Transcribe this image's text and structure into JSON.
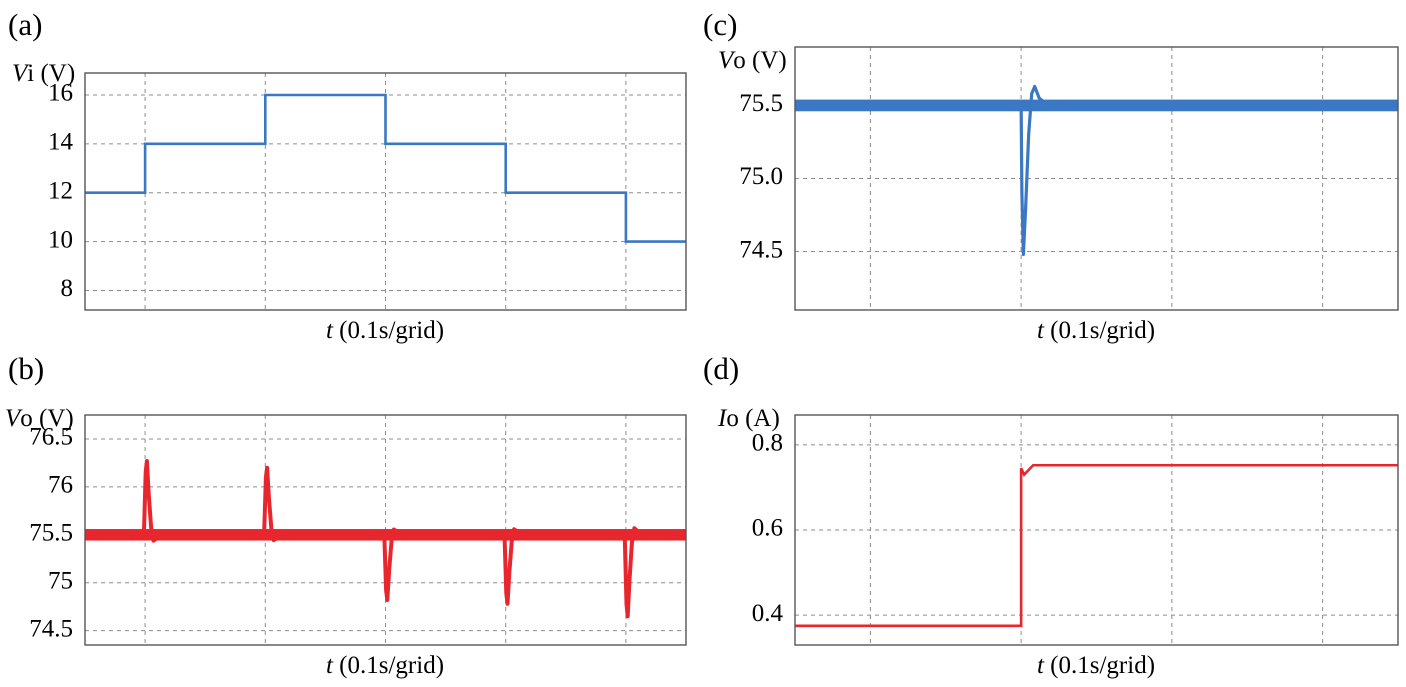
{
  "figure": {
    "colors": {
      "blue": "#3a78c3",
      "red": "#e8262e",
      "grid": "#8c8c8c",
      "frame": "#555555"
    }
  },
  "chart_data": [
    {
      "id": "a",
      "panel_label": "(a)",
      "type": "line",
      "ylabel_var": "V",
      "ylabel_sub": "i",
      "ylabel_unit": " (V)",
      "xlabel_var": "t",
      "xlabel_rest": " (0.1s/grid)",
      "x_grid_step": 0.1,
      "xlim": [
        0,
        0.5
      ],
      "ylim": [
        7.2,
        16.9
      ],
      "yticks": [
        8,
        10,
        12,
        14,
        16
      ],
      "ytick_labels": [
        "8",
        "10",
        "12",
        "14",
        "16"
      ],
      "y_gridlines": [
        8,
        10,
        12,
        14,
        16
      ],
      "x_gridlines": [
        0.05,
        0.15,
        0.25,
        0.35,
        0.45
      ],
      "color": "blue",
      "series": [
        {
          "name": "Vi",
          "x": [
            0,
            0.05,
            0.05,
            0.15,
            0.15,
            0.25,
            0.25,
            0.35,
            0.35,
            0.45,
            0.45,
            0.5
          ],
          "y": [
            12,
            12,
            14,
            14,
            16,
            16,
            14,
            14,
            12,
            12,
            10,
            10
          ]
        }
      ]
    },
    {
      "id": "b",
      "panel_label": "(b)",
      "type": "line",
      "ylabel_var": "V",
      "ylabel_sub": "o",
      "ylabel_unit": " (V)",
      "xlabel_var": "t",
      "xlabel_rest": " (0.1s/grid)",
      "xlim": [
        0,
        0.5
      ],
      "ylim": [
        74.35,
        76.75
      ],
      "yticks": [
        74.5,
        75,
        75.5,
        76,
        76.5
      ],
      "ytick_labels": [
        "74.5",
        "75",
        "75.5",
        "76",
        "76.5"
      ],
      "y_gridlines": [
        74.5,
        75,
        75.5,
        76,
        76.5
      ],
      "x_gridlines": [
        0.05,
        0.15,
        0.25,
        0.35,
        0.45
      ],
      "color": "red",
      "steady_value": 75.5,
      "ripple_band": 0.06,
      "transients": [
        {
          "t": 0.05,
          "peak": 76.27
        },
        {
          "t": 0.15,
          "peak": 76.2
        },
        {
          "t": 0.25,
          "peak": 74.82
        },
        {
          "t": 0.35,
          "peak": 74.78
        },
        {
          "t": 0.45,
          "peak": 74.65
        }
      ]
    },
    {
      "id": "c",
      "panel_label": "(c)",
      "type": "line",
      "ylabel_var": "V",
      "ylabel_sub": "o",
      "ylabel_unit": " (V)",
      "xlabel_var": "t",
      "xlabel_rest": " (0.1s/grid)",
      "xlim": [
        0,
        0.4
      ],
      "ylim": [
        74.1,
        75.9
      ],
      "yticks": [
        74.5,
        75.0,
        75.5
      ],
      "ytick_labels": [
        "74.5",
        "75.0",
        "75.5"
      ],
      "y_gridlines": [
        74.5,
        75.0,
        75.5
      ],
      "x_gridlines": [
        0.05,
        0.15,
        0.25,
        0.35
      ],
      "color": "blue",
      "steady_value": 75.5,
      "ripple_band": 0.04,
      "transients": [
        {
          "t": 0.15,
          "dip": 74.48,
          "overshoot": 75.63
        }
      ]
    },
    {
      "id": "d",
      "panel_label": "(d)",
      "type": "line",
      "ylabel_var": "I",
      "ylabel_sub": "o",
      "ylabel_unit": " (A)",
      "xlabel_var": "t",
      "xlabel_rest": " (0.1s/grid)",
      "xlim": [
        0,
        0.4
      ],
      "ylim": [
        0.33,
        0.87
      ],
      "yticks": [
        0.4,
        0.6,
        0.8
      ],
      "ytick_labels": [
        "0.4",
        "0.6",
        "0.8"
      ],
      "y_gridlines": [
        0.4,
        0.6,
        0.8
      ],
      "x_gridlines": [
        0.05,
        0.15,
        0.25,
        0.35
      ],
      "color": "red",
      "series": [
        {
          "name": "Io",
          "x": [
            0,
            0.15,
            0.15,
            0.152,
            0.158,
            0.4
          ],
          "y": [
            0.375,
            0.375,
            0.745,
            0.73,
            0.752,
            0.752
          ]
        }
      ]
    }
  ]
}
